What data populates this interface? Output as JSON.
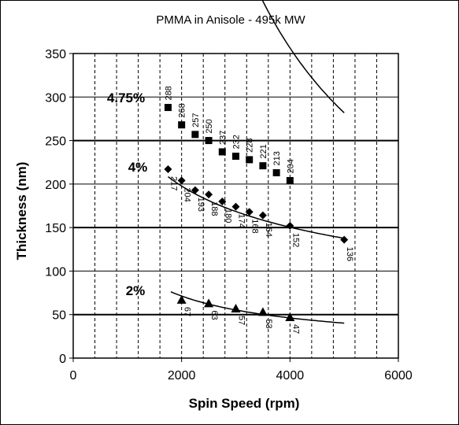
{
  "chart_data": {
    "type": "scatter",
    "title": "PMMA in Anisole - 495k MW",
    "xlabel": "Spin Speed (rpm)",
    "ylabel": "Thickness (nm)",
    "xlim": [
      0,
      6000
    ],
    "ylim": [
      0,
      350
    ],
    "x_major_ticks": [
      0,
      2000,
      4000,
      6000
    ],
    "x_minor_gridlines": [
      400,
      800,
      1200,
      1600,
      2000,
      2400,
      2800,
      3200,
      3600,
      4000,
      4400,
      4800,
      5200,
      5600
    ],
    "y_ticks": [
      0,
      50,
      100,
      150,
      200,
      250,
      300,
      350
    ],
    "grid": true,
    "series": [
      {
        "name": "4.75%",
        "marker": "square",
        "x": [
          1750,
          2000,
          2250,
          2500,
          2750,
          3000,
          3250,
          3500,
          3750,
          4000
        ],
        "y": [
          288,
          268,
          257,
          250,
          237,
          232,
          228,
          221,
          213,
          204
        ],
        "labels": [
          "288",
          "268",
          "257",
          "250",
          "237",
          "232",
          "228",
          "221",
          "213",
          "204"
        ],
        "trend": {
          "a": 2176000,
          "b": -1.051,
          "x0": 1750,
          "x1": 5000
        }
      },
      {
        "name": "4%",
        "marker": "diamond",
        "x": [
          1750,
          2000,
          2250,
          2500,
          2750,
          3000,
          3250,
          3500,
          4000,
          5000
        ],
        "y": [
          217,
          204,
          193,
          188,
          180,
          174,
          168,
          164,
          152,
          136
        ],
        "labels": [
          "217",
          "204",
          "193",
          "188",
          "180",
          "174",
          "168",
          "164",
          "152",
          "136"
        ],
        "trend": {
          "a": 3981,
          "b": -0.395,
          "x0": 1750,
          "x1": 5000
        }
      },
      {
        "name": "2%",
        "marker": "triangle",
        "x": [
          2000,
          2500,
          3000,
          3500,
          4000
        ],
        "y": [
          67,
          63,
          57,
          53,
          47
        ],
        "labels": [
          "67",
          "63",
          "57",
          "53",
          "47"
        ],
        "trend": {
          "a": 8375,
          "b": -0.627,
          "x0": 1800,
          "x1": 5000
        }
      }
    ]
  }
}
